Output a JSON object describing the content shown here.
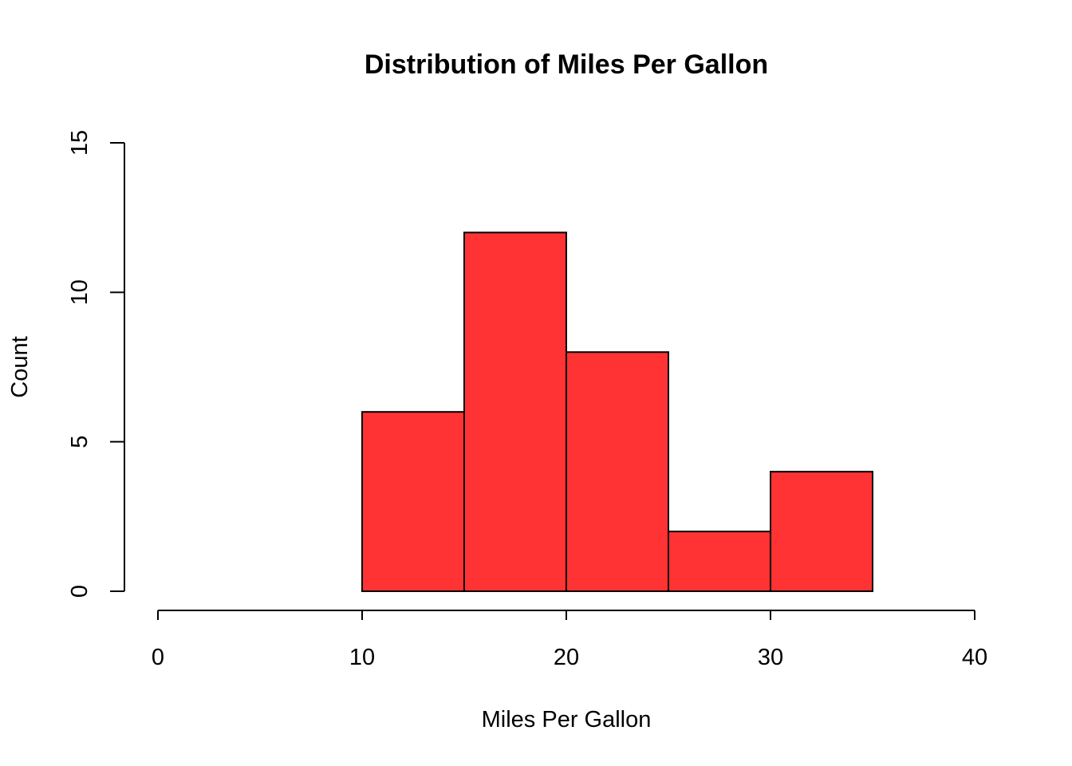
{
  "chart_data": {
    "type": "bar",
    "title": "Distribution of Miles Per Gallon",
    "xlabel": "Miles Per Gallon",
    "ylabel": "Count",
    "xlim": [
      0,
      40
    ],
    "ylim": [
      0,
      15
    ],
    "x_ticks": [
      "0",
      "10",
      "20",
      "30",
      "40"
    ],
    "y_ticks": [
      "0",
      "5",
      "10",
      "15"
    ],
    "bins": [
      {
        "from": 10,
        "to": 15,
        "count": 6
      },
      {
        "from": 15,
        "to": 20,
        "count": 12
      },
      {
        "from": 20,
        "to": 25,
        "count": 8
      },
      {
        "from": 25,
        "to": 30,
        "count": 2
      },
      {
        "from": 30,
        "to": 35,
        "count": 4
      }
    ],
    "bar_color": "#ff3333",
    "grid": false,
    "legend": "none"
  }
}
